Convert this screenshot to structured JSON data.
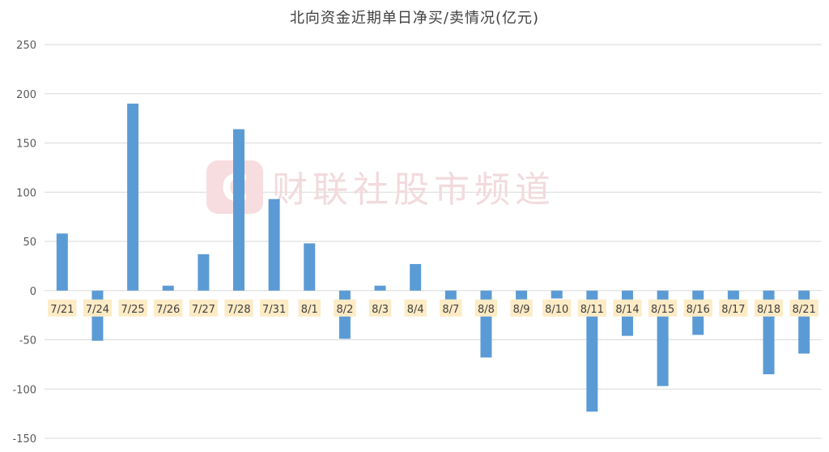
{
  "chart_data": {
    "type": "bar",
    "title": "北向资金近期单日净买/卖情况(亿元)",
    "xlabel": "",
    "ylabel": "",
    "ylim": [
      -150,
      250
    ],
    "yticks": [
      250,
      200,
      150,
      100,
      50,
      0,
      -50,
      -100,
      -150
    ],
    "grid": true,
    "bar_color": "#5b9bd5",
    "label_bg_color": "#fcebc5",
    "categories": [
      "7/21",
      "7/24",
      "7/25",
      "7/26",
      "7/27",
      "7/28",
      "7/31",
      "8/1",
      "8/2",
      "8/3",
      "8/4",
      "8/7",
      "8/8",
      "8/9",
      "8/10",
      "8/11",
      "8/14",
      "8/15",
      "8/16",
      "8/17",
      "8/18",
      "8/21"
    ],
    "values": [
      58,
      -51,
      190,
      5,
      37,
      164,
      93,
      48,
      -49,
      5,
      27,
      -9,
      -68,
      -9,
      -8,
      -123,
      -46,
      -97,
      -45,
      -9,
      -85,
      -64
    ]
  },
  "watermark": {
    "text": "财联社股市频道",
    "logo_glyph": "C",
    "color": "#f2dadd"
  }
}
